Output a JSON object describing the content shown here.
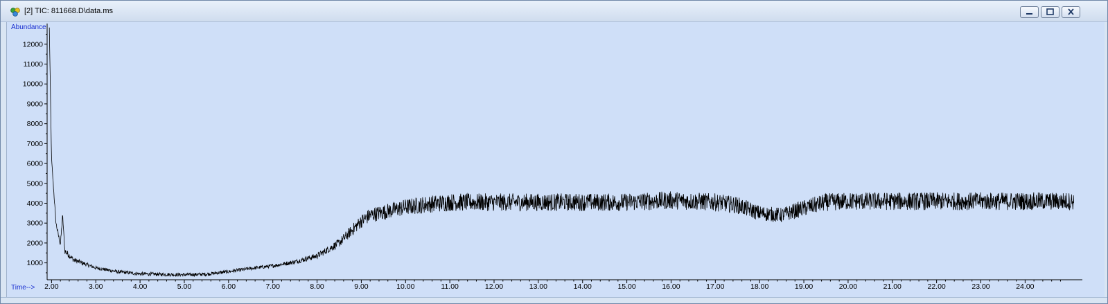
{
  "window": {
    "title": "[2] TIC: 811668.D\\data.ms",
    "buttons": [
      "minimize",
      "restore",
      "close"
    ]
  },
  "chart_data": {
    "type": "line",
    "title": "",
    "xlabel": "Time-->",
    "ylabel": "Abundance",
    "xlim": [
      1.9,
      25.2
    ],
    "ylim": [
      150,
      12900
    ],
    "x_ticks": [
      "2.00",
      "3.00",
      "4.00",
      "5.00",
      "6.00",
      "7.00",
      "8.00",
      "9.00",
      "10.00",
      "11.00",
      "12.00",
      "13.00",
      "14.00",
      "15.00",
      "16.00",
      "17.00",
      "18.00",
      "19.00",
      "20.00",
      "21.00",
      "22.00",
      "23.00",
      "24.00"
    ],
    "y_ticks": [
      "1000",
      "2000",
      "3000",
      "4000",
      "5000",
      "6000",
      "7000",
      "8000",
      "9000",
      "10000",
      "11000",
      "12000"
    ],
    "grid": false,
    "line_color": "#000000",
    "series": [
      {
        "x": [
          1.95,
          2.0,
          2.1,
          2.2,
          2.25,
          2.3,
          2.5,
          2.75,
          3.0,
          3.5,
          4.0,
          4.5,
          5.0,
          5.5,
          6.0,
          6.5,
          7.0,
          7.5,
          8.0,
          8.5,
          9.0,
          9.2,
          9.5,
          10.0,
          10.5,
          11.0,
          11.5,
          12.0,
          12.5,
          13.0,
          13.5,
          14.0,
          14.5,
          15.0,
          15.5,
          16.0,
          16.5,
          17.0,
          17.5,
          18.0,
          18.5,
          19.0,
          19.5,
          20.0,
          20.5,
          21.0,
          21.5,
          22.0,
          22.5,
          23.0,
          23.5,
          24.0,
          24.5,
          25.0,
          25.1
        ],
        "y": [
          12800,
          6200,
          3000,
          1900,
          3400,
          1600,
          1150,
          950,
          750,
          550,
          450,
          420,
          400,
          430,
          560,
          720,
          850,
          1050,
          1350,
          2000,
          3100,
          3400,
          3550,
          3800,
          3950,
          4050,
          4050,
          4050,
          4050,
          4050,
          4050,
          4050,
          4050,
          4050,
          4100,
          4150,
          4100,
          4050,
          3900,
          3500,
          3400,
          3750,
          4050,
          4100,
          4100,
          4100,
          4100,
          4100,
          4100,
          4100,
          4100,
          4100,
          4100,
          4100,
          4100
        ]
      }
    ]
  }
}
